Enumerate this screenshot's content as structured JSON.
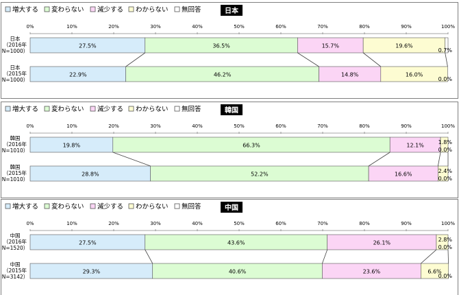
{
  "legend": [
    {
      "label": "増大する",
      "color": "#d6ecfa"
    },
    {
      "label": "変わらない",
      "color": "#dcfcd3"
    },
    {
      "label": "減少する",
      "color": "#fbd5f5"
    },
    {
      "label": "わからない",
      "color": "#fdfcd2"
    },
    {
      "label": "無回答",
      "color": "#ffffff"
    }
  ],
  "axis_ticks": [
    "0%",
    "10%",
    "20%",
    "30%",
    "40%",
    "50%",
    "60%",
    "70%",
    "80%",
    "90%",
    "100%"
  ],
  "chart_data": [
    {
      "type": "bar",
      "stacked": true,
      "orientation": "horizontal",
      "title": "日本",
      "xlim": [
        0,
        100
      ],
      "categories": [
        [
          "日本",
          "（2016年",
          "N=1000）"
        ],
        [
          "日本",
          "（2015年",
          "N=1000）"
        ]
      ],
      "series": [
        {
          "name": "増大する",
          "values": [
            27.5,
            22.9
          ]
        },
        {
          "name": "変わらない",
          "values": [
            36.5,
            46.2
          ]
        },
        {
          "name": "減少する",
          "values": [
            15.7,
            14.8
          ]
        },
        {
          "name": "わからない",
          "values": [
            19.6,
            16.0
          ]
        },
        {
          "name": "無回答",
          "values": [
            0.7,
            0.0
          ]
        }
      ],
      "labels": [
        [
          "27.5%",
          "36.5%",
          "15.7%",
          "19.6%",
          "0.7%"
        ],
        [
          "22.9%",
          "46.2%",
          "14.8%",
          "16.0%",
          "0.0%"
        ]
      ]
    },
    {
      "type": "bar",
      "stacked": true,
      "orientation": "horizontal",
      "title": "韓国",
      "xlim": [
        0,
        100
      ],
      "categories": [
        [
          "韓国",
          "（2016年",
          "N=1010）"
        ],
        [
          "韓国",
          "（2015年",
          "N=1010）"
        ]
      ],
      "series": [
        {
          "name": "増大する",
          "values": [
            19.8,
            28.8
          ]
        },
        {
          "name": "変わらない",
          "values": [
            66.3,
            52.2
          ]
        },
        {
          "name": "減少する",
          "values": [
            12.1,
            16.6
          ]
        },
        {
          "name": "わからない",
          "values": [
            1.8,
            2.4
          ]
        },
        {
          "name": "無回答",
          "values": [
            0.0,
            0.0
          ]
        }
      ],
      "labels": [
        [
          "19.8%",
          "66.3%",
          "12.1%",
          "1.8%",
          "0.0%"
        ],
        [
          "28.8%",
          "52.2%",
          "16.6%",
          "2.4%",
          "0.0%"
        ]
      ]
    },
    {
      "type": "bar",
      "stacked": true,
      "orientation": "horizontal",
      "title": "中国",
      "xlim": [
        0,
        100
      ],
      "categories": [
        [
          "中国",
          "（2016年",
          "N=1520）"
        ],
        [
          "中国",
          "（2015年",
          "N=3142）"
        ]
      ],
      "series": [
        {
          "name": "増大する",
          "values": [
            27.5,
            29.3
          ]
        },
        {
          "name": "変わらない",
          "values": [
            43.6,
            40.6
          ]
        },
        {
          "name": "減少する",
          "values": [
            26.1,
            23.6
          ]
        },
        {
          "name": "わからない",
          "values": [
            2.8,
            6.6
          ]
        },
        {
          "name": "無回答",
          "values": [
            0.0,
            0.0
          ]
        }
      ],
      "labels": [
        [
          "27.5%",
          "43.6%",
          "26.1%",
          "2.8%",
          "0.0%"
        ],
        [
          "29.3%",
          "40.6%",
          "23.6%",
          "6.6%",
          "0.0%"
        ]
      ]
    }
  ]
}
